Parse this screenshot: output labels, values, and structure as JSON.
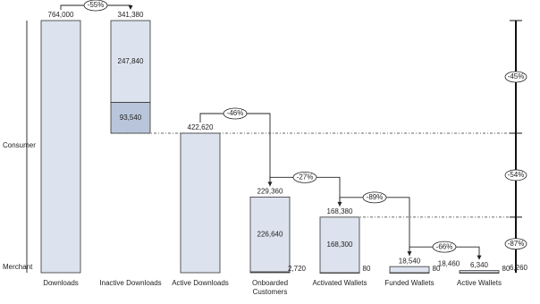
{
  "chart_data": {
    "type": "waterfall",
    "categories": [
      "Downloads",
      "Inactive Downloads",
      "Active Downloads",
      "Onboarded Customers",
      "Activated Wallets",
      "Funded Wallets",
      "Active Wallets"
    ],
    "totals": {
      "values": [
        764000,
        341380,
        422620,
        229360,
        168380,
        18540,
        6340
      ],
      "value_labels": [
        "764,000",
        "341,380",
        "422,620",
        "229,360",
        "168,380",
        "18,540",
        "6,340"
      ]
    },
    "series": [
      {
        "name": "Consumer",
        "color": "#dde3ee",
        "values": [
          null,
          247840,
          null,
          226640,
          168300,
          18460,
          6260
        ],
        "value_labels": [
          null,
          "247,840",
          null,
          "226,640",
          "168,300",
          "18,460",
          "6,260"
        ]
      },
      {
        "name": "Merchant",
        "color": "#b9c5da",
        "values": [
          null,
          93540,
          null,
          2720,
          80,
          80,
          80
        ],
        "value_labels": [
          null,
          "93,540",
          null,
          "2,720",
          "80",
          "80",
          "80"
        ]
      }
    ],
    "step_changes": {
      "values": [
        -55,
        null,
        -46,
        -27,
        -89,
        -66,
        null
      ],
      "value_labels": [
        "-55%",
        null,
        "-46%",
        "-27%",
        "-89%",
        "-66%",
        null
      ]
    },
    "overall_changes": {
      "values": [
        -45,
        -54,
        -87
      ],
      "value_labels": [
        "-45%",
        "-54%",
        "-87%"
      ]
    },
    "ylim": [
      0,
      764000
    ],
    "color": "#dde3ee"
  }
}
